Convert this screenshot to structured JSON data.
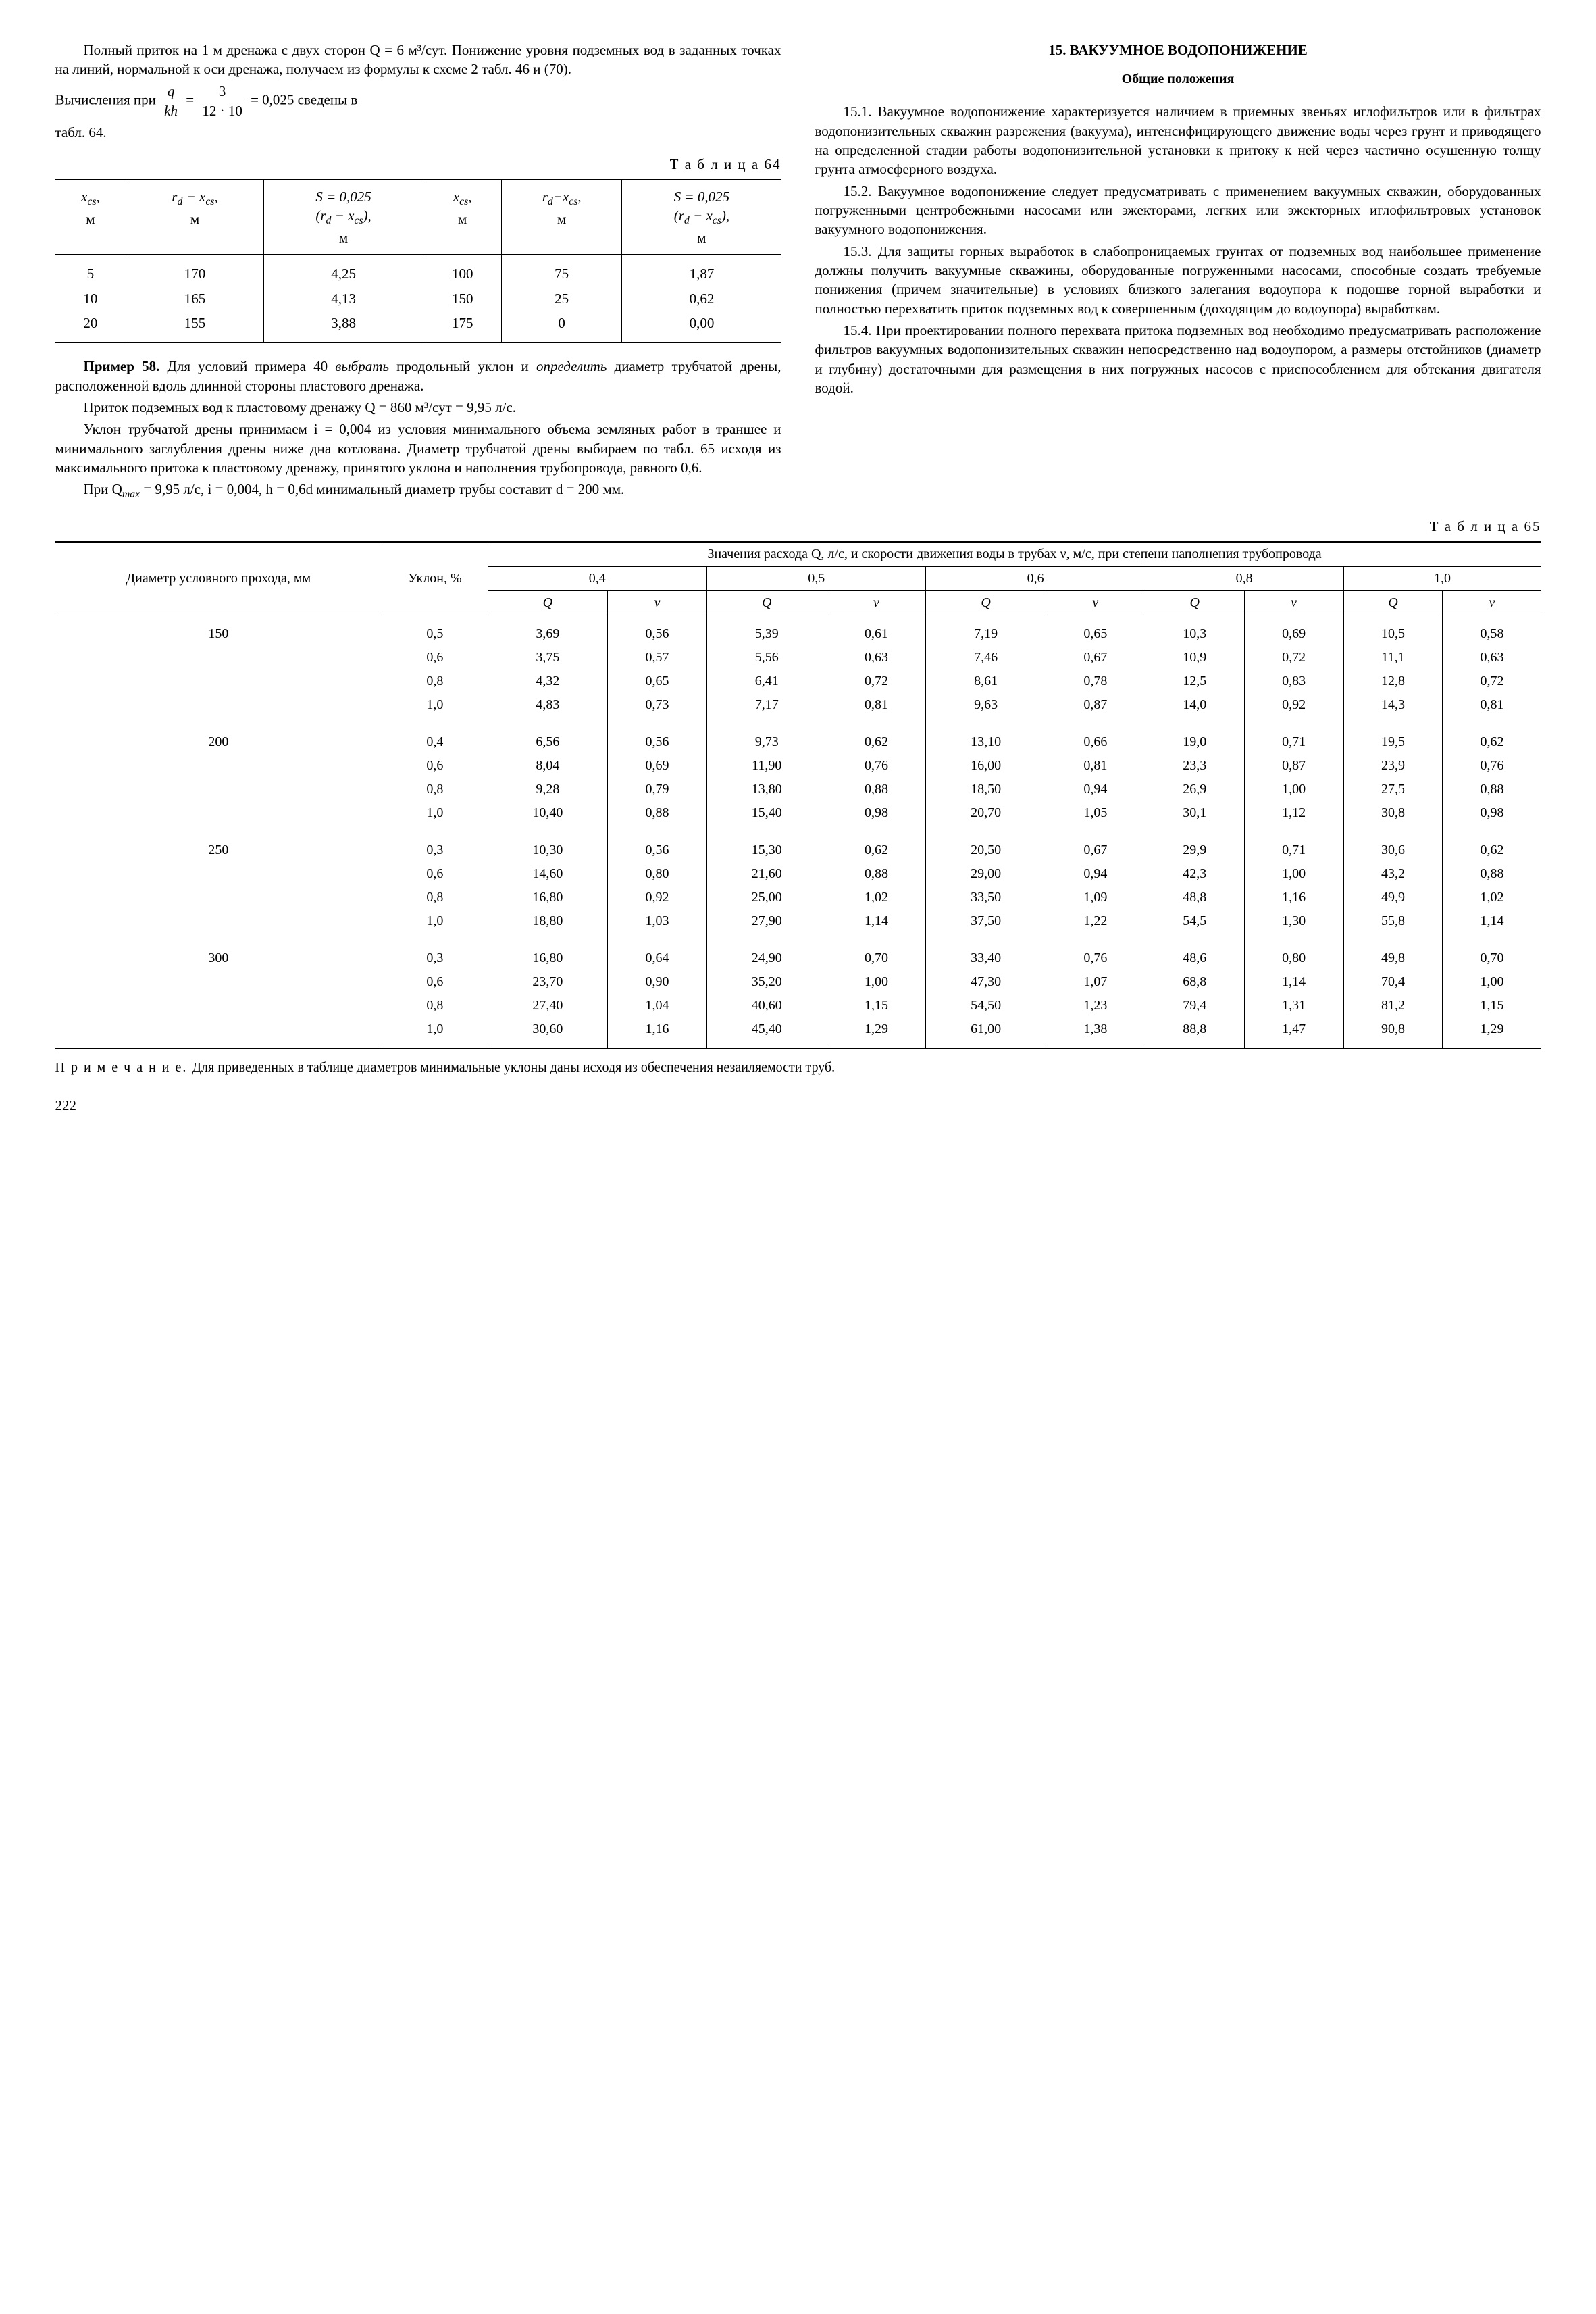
{
  "left": {
    "p1": "Полный приток на 1 м дренажа с двух сторон Q = 6 м³/сут. Понижение уровня подземных вод в заданных точках на линий, нормальной к оси дренажа, получаем из формулы к схеме 2 табл. 46 и (70).",
    "p2a": "Вычисления при ",
    "p2_frac1_num": "q",
    "p2_frac1_den": "kh",
    "p2b": " = ",
    "p2_frac2_num": "3",
    "p2_frac2_den": "12 · 10",
    "p2c": " = 0,025 сведены в",
    "p3": "табл. 64.",
    "t64_caption": "Т а б л и ц а  64",
    "t64": {
      "h1a": "x",
      "h1sub": "cs",
      "h1b": ",",
      "h1m": "м",
      "h2a": "r",
      "h2sub1": "d",
      "h2mid": " − x",
      "h2sub2": "cs",
      "h2b": ",",
      "h2m": "м",
      "h3a": "S = 0,025",
      "h3b": "(r",
      "h3sub1": "d",
      "h3mid": " − x",
      "h3sub2": "cs",
      "h3c": "),",
      "h3m": "м",
      "rows": [
        {
          "c1": "5",
          "c2": "170",
          "c3": "4,25",
          "c4": "100",
          "c5": "75",
          "c6": "1,87"
        },
        {
          "c1": "10",
          "c2": "165",
          "c3": "4,13",
          "c4": "150",
          "c5": "25",
          "c6": "0,62"
        },
        {
          "c1": "20",
          "c2": "155",
          "c3": "3,88",
          "c4": "175",
          "c5": "0",
          "c6": "0,00"
        }
      ]
    },
    "ex58a": "Пример 58. ",
    "ex58b": "Для условий примера 40 ",
    "ex58c": "выбрать",
    "ex58d": " продольный уклон и ",
    "ex58e": "определить",
    "ex58f": " диаметр трубчатой дрены, расположенной вдоль длинной стороны пластового дренажа.",
    "p5": "Приток подземных вод к пластовому дренажу Q = 860 м³/сут = 9,95 л/с.",
    "p6": "Уклон трубчатой дрены принимаем i = 0,004 из условия минимального объема земляных работ в траншее и минимального заглубления дрены ниже дна котлована. Диаметр трубчатой дрены выбираем по табл. 65 исходя из максимального притока к пластовому дренажу, принятого уклона и наполнения трубопровода, равного 0,6.",
    "p7a": "При Q",
    "p7sub": "max",
    "p7b": " = 9,95 л/с, i = 0,004, h = 0,6d минимальный диаметр трубы составит d = 200 мм."
  },
  "right": {
    "heading": "15. ВАКУУМНОЕ ВОДОПОНИЖЕНИЕ",
    "subheading": "Общие положения",
    "p1": "15.1. Вакуумное водопонижение характеризуется наличием в приемных звеньях иглофильтров или в фильтрах водопонизительных скважин разрежения (вакуума), интенсифицирующего движение воды через грунт и приводящего на определенной стадии работы водопонизительной установки к притоку к ней через частично осушенную толщу грунта атмосферного воздуха.",
    "p2": "15.2. Вакуумное водопонижение следует предусматривать с применением вакуумных скважин, оборудованных погруженными центробежными насосами или эжекторами, легких или эжекторных иглофильтровых установок вакуумного водопонижения.",
    "p3": "15.3. Для защиты горных выработок в слабопроницаемых грунтах от подземных вод наибольшее применение должны получить вакуумные скважины, оборудованные погруженными насосами, способные создать требуемые понижения (причем значительные) в условиях близкого залегания водоупора к подошве горной выработки и полностью перехватить приток подземных вод к совершенным (доходящим до водоупора) выработкам.",
    "p4": "15.4. При проектировании полного перехвата притока подземных вод необходимо предусматривать расположение фильтров вакуумных водопонизительных скважин непосредственно над водоупором, а размеры отстойников (диаметр и глубину) достаточными для размещения в них погружных насосов с приспособлением для обтекания двигателя водой."
  },
  "t65_caption": "Т а б л и ц а  65",
  "t65": {
    "h_diam": "Диаметр условного прохода, мм",
    "h_slope": "Уклон, %",
    "h_span": "Значения расхода Q, л/с, и скорости движения воды в трубах ν, м/с, при степени наполнения трубопровода",
    "fill": [
      "0,4",
      "0,5",
      "0,6",
      "0,8",
      "1,0"
    ],
    "Q": "Q",
    "nu": "ν",
    "groups": [
      {
        "diam": "150",
        "rows": [
          {
            "s": "0,5",
            "v": [
              "3,69",
              "0,56",
              "5,39",
              "0,61",
              "7,19",
              "0,65",
              "10,3",
              "0,69",
              "10,5",
              "0,58"
            ]
          },
          {
            "s": "0,6",
            "v": [
              "3,75",
              "0,57",
              "5,56",
              "0,63",
              "7,46",
              "0,67",
              "10,9",
              "0,72",
              "11,1",
              "0,63"
            ]
          },
          {
            "s": "0,8",
            "v": [
              "4,32",
              "0,65",
              "6,41",
              "0,72",
              "8,61",
              "0,78",
              "12,5",
              "0,83",
              "12,8",
              "0,72"
            ]
          },
          {
            "s": "1,0",
            "v": [
              "4,83",
              "0,73",
              "7,17",
              "0,81",
              "9,63",
              "0,87",
              "14,0",
              "0,92",
              "14,3",
              "0,81"
            ]
          }
        ]
      },
      {
        "diam": "200",
        "rows": [
          {
            "s": "0,4",
            "v": [
              "6,56",
              "0,56",
              "9,73",
              "0,62",
              "13,10",
              "0,66",
              "19,0",
              "0,71",
              "19,5",
              "0,62"
            ]
          },
          {
            "s": "0,6",
            "v": [
              "8,04",
              "0,69",
              "11,90",
              "0,76",
              "16,00",
              "0,81",
              "23,3",
              "0,87",
              "23,9",
              "0,76"
            ]
          },
          {
            "s": "0,8",
            "v": [
              "9,28",
              "0,79",
              "13,80",
              "0,88",
              "18,50",
              "0,94",
              "26,9",
              "1,00",
              "27,5",
              "0,88"
            ]
          },
          {
            "s": "1,0",
            "v": [
              "10,40",
              "0,88",
              "15,40",
              "0,98",
              "20,70",
              "1,05",
              "30,1",
              "1,12",
              "30,8",
              "0,98"
            ]
          }
        ]
      },
      {
        "diam": "250",
        "rows": [
          {
            "s": "0,3",
            "v": [
              "10,30",
              "0,56",
              "15,30",
              "0,62",
              "20,50",
              "0,67",
              "29,9",
              "0,71",
              "30,6",
              "0,62"
            ]
          },
          {
            "s": "0,6",
            "v": [
              "14,60",
              "0,80",
              "21,60",
              "0,88",
              "29,00",
              "0,94",
              "42,3",
              "1,00",
              "43,2",
              "0,88"
            ]
          },
          {
            "s": "0,8",
            "v": [
              "16,80",
              "0,92",
              "25,00",
              "1,02",
              "33,50",
              "1,09",
              "48,8",
              "1,16",
              "49,9",
              "1,02"
            ]
          },
          {
            "s": "1,0",
            "v": [
              "18,80",
              "1,03",
              "27,90",
              "1,14",
              "37,50",
              "1,22",
              "54,5",
              "1,30",
              "55,8",
              "1,14"
            ]
          }
        ]
      },
      {
        "diam": "300",
        "rows": [
          {
            "s": "0,3",
            "v": [
              "16,80",
              "0,64",
              "24,90",
              "0,70",
              "33,40",
              "0,76",
              "48,6",
              "0,80",
              "49,8",
              "0,70"
            ]
          },
          {
            "s": "0,6",
            "v": [
              "23,70",
              "0,90",
              "35,20",
              "1,00",
              "47,30",
              "1,07",
              "68,8",
              "1,14",
              "70,4",
              "1,00"
            ]
          },
          {
            "s": "0,8",
            "v": [
              "27,40",
              "1,04",
              "40,60",
              "1,15",
              "54,50",
              "1,23",
              "79,4",
              "1,31",
              "81,2",
              "1,15"
            ]
          },
          {
            "s": "1,0",
            "v": [
              "30,60",
              "1,16",
              "45,40",
              "1,29",
              "61,00",
              "1,38",
              "88,8",
              "1,47",
              "90,8",
              "1,29"
            ]
          }
        ]
      }
    ]
  },
  "note_label": "П р и м е ч а н и е. ",
  "note_text": "Для приведенных в таблице диаметров минимальные уклоны даны исходя из обеспечения незаиляемости труб.",
  "pagenum": "222"
}
